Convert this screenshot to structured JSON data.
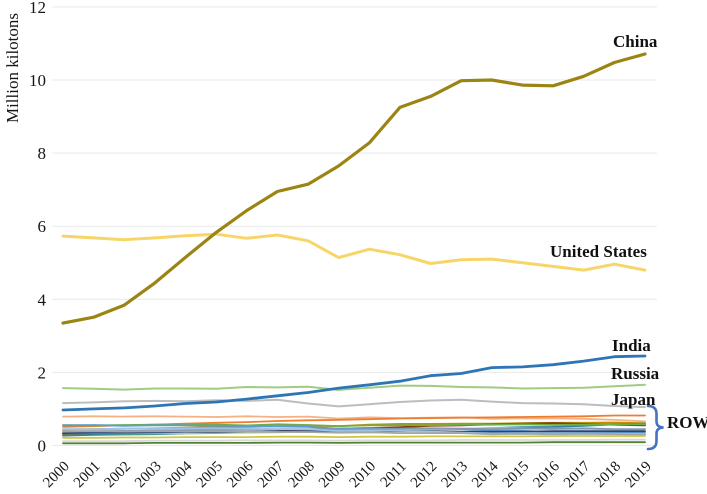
{
  "chart_data": {
    "type": "line",
    "title": "",
    "xlabel": "",
    "ylabel": "Million kilotons",
    "x": [
      2000,
      2001,
      2002,
      2003,
      2004,
      2005,
      2006,
      2007,
      2008,
      2009,
      2010,
      2011,
      2012,
      2013,
      2014,
      2015,
      2016,
      2017,
      2018,
      2019
    ],
    "ylim": [
      0,
      12
    ],
    "yticks": [
      0,
      2,
      4,
      6,
      8,
      10,
      12
    ],
    "grid": "horizontal",
    "gridline_color": "#e9e9e9",
    "legend_position": "end-of-line-labels",
    "series": [
      {
        "name": "China",
        "color": "#9c8412",
        "width": 3.2,
        "values": [
          3.35,
          3.51,
          3.84,
          4.45,
          5.15,
          5.83,
          6.43,
          6.95,
          7.15,
          7.65,
          8.28,
          9.25,
          9.55,
          9.98,
          10.0,
          9.86,
          9.84,
          10.1,
          10.48,
          10.71
        ]
      },
      {
        "name": "United States",
        "color": "#f7d568",
        "width": 3.0,
        "values": [
          5.73,
          5.68,
          5.63,
          5.68,
          5.74,
          5.78,
          5.67,
          5.76,
          5.6,
          5.14,
          5.37,
          5.22,
          4.98,
          5.08,
          5.1,
          5.0,
          4.9,
          4.8,
          4.96,
          4.8
        ]
      },
      {
        "name": "India",
        "color": "#2e75b6",
        "width": 2.8,
        "values": [
          0.97,
          1.0,
          1.03,
          1.08,
          1.15,
          1.19,
          1.27,
          1.36,
          1.45,
          1.57,
          1.66,
          1.76,
          1.91,
          1.97,
          2.13,
          2.15,
          2.21,
          2.31,
          2.43,
          2.45
        ]
      },
      {
        "name": "Russia",
        "color": "#a1cb82",
        "width": 2.0,
        "values": [
          1.57,
          1.55,
          1.53,
          1.56,
          1.56,
          1.55,
          1.6,
          1.59,
          1.61,
          1.52,
          1.58,
          1.64,
          1.63,
          1.6,
          1.59,
          1.56,
          1.57,
          1.58,
          1.62,
          1.66
        ]
      },
      {
        "name": "Japan",
        "color": "#bdbdbd",
        "width": 2.0,
        "values": [
          1.16,
          1.18,
          1.21,
          1.22,
          1.21,
          1.24,
          1.22,
          1.25,
          1.15,
          1.07,
          1.13,
          1.19,
          1.23,
          1.25,
          1.2,
          1.16,
          1.15,
          1.13,
          1.08,
          1.05
        ]
      }
    ],
    "row_group": {
      "label": "ROW",
      "bracket_color": "#4472c4",
      "series": [
        {
          "color": "#f4b183",
          "values": [
            0.79,
            0.8,
            0.79,
            0.8,
            0.79,
            0.78,
            0.8,
            0.78,
            0.79,
            0.74,
            0.77,
            0.75,
            0.76,
            0.77,
            0.73,
            0.74,
            0.74,
            0.73,
            0.7,
            0.66
          ]
        },
        {
          "color": "#ed7d31",
          "values": [
            0.51,
            0.53,
            0.55,
            0.57,
            0.6,
            0.62,
            0.64,
            0.67,
            0.69,
            0.7,
            0.72,
            0.74,
            0.75,
            0.76,
            0.77,
            0.78,
            0.79,
            0.8,
            0.82,
            0.82
          ]
        },
        {
          "color": "#bf8f00",
          "values": [
            0.44,
            0.45,
            0.46,
            0.47,
            0.49,
            0.5,
            0.51,
            0.53,
            0.54,
            0.53,
            0.57,
            0.59,
            0.59,
            0.6,
            0.6,
            0.61,
            0.62,
            0.62,
            0.63,
            0.61
          ]
        },
        {
          "color": "#843c0c",
          "values": [
            0.3,
            0.31,
            0.32,
            0.33,
            0.35,
            0.37,
            0.38,
            0.39,
            0.43,
            0.46,
            0.48,
            0.5,
            0.54,
            0.55,
            0.58,
            0.6,
            0.61,
            0.59,
            0.57,
            0.55
          ]
        },
        {
          "color": "#31859c",
          "values": [
            0.27,
            0.29,
            0.3,
            0.31,
            0.33,
            0.34,
            0.36,
            0.38,
            0.37,
            0.4,
            0.41,
            0.44,
            0.46,
            0.45,
            0.48,
            0.5,
            0.51,
            0.54,
            0.58,
            0.6
          ]
        },
        {
          "color": "#70ad47",
          "values": [
            0.56,
            0.55,
            0.56,
            0.57,
            0.56,
            0.57,
            0.55,
            0.58,
            0.56,
            0.53,
            0.55,
            0.56,
            0.55,
            0.57,
            0.57,
            0.58,
            0.56,
            0.57,
            0.58,
            0.58
          ]
        },
        {
          "color": "#5b9bd5",
          "values": [
            0.55,
            0.56,
            0.54,
            0.55,
            0.55,
            0.54,
            0.53,
            0.52,
            0.51,
            0.46,
            0.48,
            0.44,
            0.46,
            0.45,
            0.41,
            0.4,
            0.37,
            0.36,
            0.35,
            0.35
          ]
        },
        {
          "color": "#a9d18e",
          "values": [
            0.33,
            0.34,
            0.33,
            0.33,
            0.34,
            0.35,
            0.35,
            0.36,
            0.38,
            0.37,
            0.41,
            0.42,
            0.44,
            0.46,
            0.48,
            0.47,
            0.45,
            0.46,
            0.44,
            0.44
          ]
        },
        {
          "color": "#8497b0",
          "values": [
            0.39,
            0.39,
            0.4,
            0.41,
            0.42,
            0.43,
            0.44,
            0.45,
            0.45,
            0.44,
            0.45,
            0.46,
            0.47,
            0.46,
            0.45,
            0.46,
            0.46,
            0.47,
            0.45,
            0.45
          ]
        },
        {
          "color": "#264478",
          "values": [
            0.34,
            0.35,
            0.35,
            0.36,
            0.37,
            0.37,
            0.38,
            0.39,
            0.39,
            0.4,
            0.39,
            0.39,
            0.39,
            0.38,
            0.38,
            0.38,
            0.39,
            0.39,
            0.39,
            0.39
          ]
        },
        {
          "color": "#9dc3e6",
          "values": [
            0.45,
            0.45,
            0.46,
            0.47,
            0.47,
            0.47,
            0.46,
            0.45,
            0.44,
            0.4,
            0.41,
            0.4,
            0.38,
            0.35,
            0.33,
            0.34,
            0.33,
            0.33,
            0.32,
            0.31
          ]
        },
        {
          "color": "#a5a5a5",
          "values": [
            0.38,
            0.39,
            0.38,
            0.39,
            0.38,
            0.39,
            0.38,
            0.37,
            0.37,
            0.35,
            0.36,
            0.34,
            0.34,
            0.34,
            0.31,
            0.32,
            0.31,
            0.32,
            0.31,
            0.29
          ]
        },
        {
          "color": "#c9c944",
          "values": [
            0.21,
            0.21,
            0.22,
            0.22,
            0.23,
            0.23,
            0.23,
            0.24,
            0.24,
            0.23,
            0.24,
            0.24,
            0.25,
            0.25,
            0.25,
            0.25,
            0.26,
            0.26,
            0.26,
            0.26
          ]
        },
        {
          "color": "#d9d9d9",
          "values": [
            0.12,
            0.12,
            0.12,
            0.13,
            0.13,
            0.13,
            0.14,
            0.14,
            0.14,
            0.13,
            0.14,
            0.14,
            0.14,
            0.15,
            0.15,
            0.15,
            0.15,
            0.15,
            0.16,
            0.16
          ]
        },
        {
          "color": "#548235",
          "values": [
            0.06,
            0.06,
            0.06,
            0.07,
            0.07,
            0.07,
            0.07,
            0.08,
            0.08,
            0.07,
            0.08,
            0.08,
            0.08,
            0.08,
            0.08,
            0.08,
            0.09,
            0.09,
            0.09,
            0.09
          ]
        }
      ]
    }
  }
}
